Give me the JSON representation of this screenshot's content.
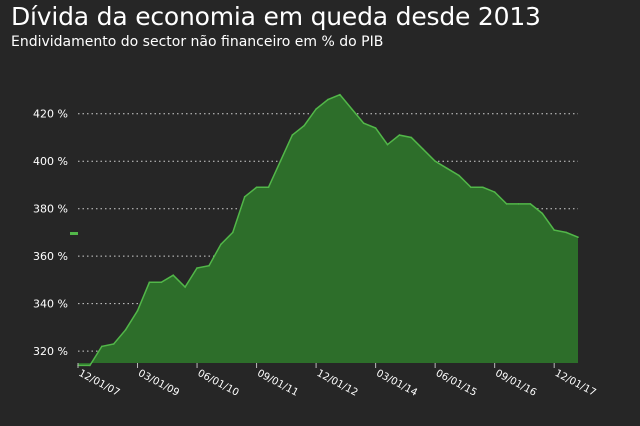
{
  "header": {
    "title": "Dívida da economia em queda desde 2013",
    "subtitle": "Endividamento do sector não financeiro em % do PIB"
  },
  "chart_data": {
    "type": "area",
    "title": "Dívida da economia em queda desde 2013",
    "subtitle": "Endividamento do sector não financeiro em % do PIB",
    "xlabel": "",
    "ylabel": "",
    "ylim": [
      315,
      430
    ],
    "grid": true,
    "grid_style": "dotted horizontal",
    "y_ticks": [
      320,
      340,
      360,
      380,
      400,
      420
    ],
    "y_tick_labels": [
      "320 %",
      "340 %",
      "360 %",
      "380 %",
      "400 %",
      "420 %"
    ],
    "x_tick_labels": [
      "12/01/07",
      "03/01/09",
      "06/01/10",
      "09/01/11",
      "12/01/12",
      "03/01/14",
      "06/01/15",
      "09/01/16",
      "12/01/17"
    ],
    "x_tick_positions": [
      "2007-12",
      "2009-03",
      "2010-06",
      "2011-09",
      "2012-12",
      "2014-03",
      "2015-06",
      "2016-09",
      "2017-12"
    ],
    "colors": {
      "fill": "#2d6e2a",
      "line": "#52b749",
      "grid": "#d0d0d0",
      "background": "#262626"
    },
    "series": [
      {
        "x": [
          "2007-12",
          "2008-03",
          "2008-06",
          "2008-09",
          "2008-12",
          "2009-03",
          "2009-06",
          "2009-09",
          "2009-12",
          "2010-03",
          "2010-06",
          "2010-09",
          "2010-12",
          "2011-03",
          "2011-06",
          "2011-09",
          "2011-12",
          "2012-03",
          "2012-06",
          "2012-09",
          "2012-12",
          "2013-03",
          "2013-06",
          "2013-09",
          "2013-12",
          "2014-03",
          "2014-06",
          "2014-09",
          "2014-12",
          "2015-03",
          "2015-06",
          "2015-09",
          "2015-12",
          "2016-03",
          "2016-06",
          "2016-09",
          "2016-12",
          "2017-03",
          "2017-06",
          "2017-09",
          "2017-12",
          "2018-03",
          "2018-06"
        ],
        "values": [
          314,
          314,
          322,
          323,
          329,
          337,
          349,
          349,
          352,
          347,
          355,
          356,
          365,
          370,
          385,
          389,
          389,
          400,
          411,
          415,
          422,
          426,
          428,
          422,
          416,
          414,
          407,
          411,
          410,
          405,
          400,
          397,
          394,
          389,
          389,
          387,
          382,
          382,
          382,
          378,
          371,
          370,
          368
        ]
      }
    ]
  }
}
